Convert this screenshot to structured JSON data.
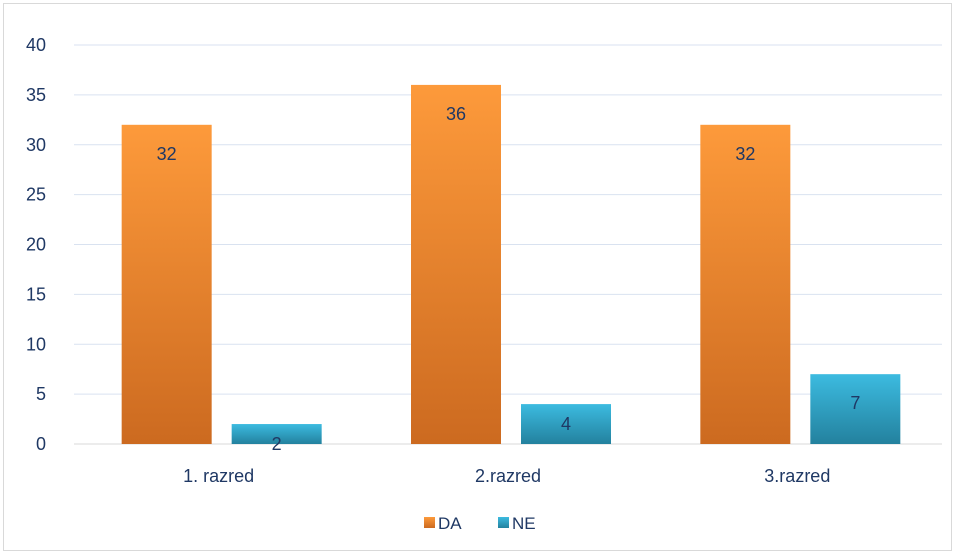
{
  "chart_data": {
    "type": "bar",
    "categories": [
      "1. razred",
      "2.razred",
      "3.razred"
    ],
    "series": [
      {
        "name": "DA",
        "values": [
          32,
          36,
          32
        ],
        "color": "#f28e2b"
      },
      {
        "name": "NE",
        "values": [
          2,
          4,
          7
        ],
        "color": "#2ea3c8"
      }
    ],
    "ylim": [
      0,
      40
    ],
    "yticks": [
      0,
      5,
      10,
      15,
      20,
      25,
      30,
      35,
      40
    ],
    "grid": true,
    "legend_position": "bottom",
    "title": "",
    "xlabel": "",
    "ylabel": ""
  }
}
